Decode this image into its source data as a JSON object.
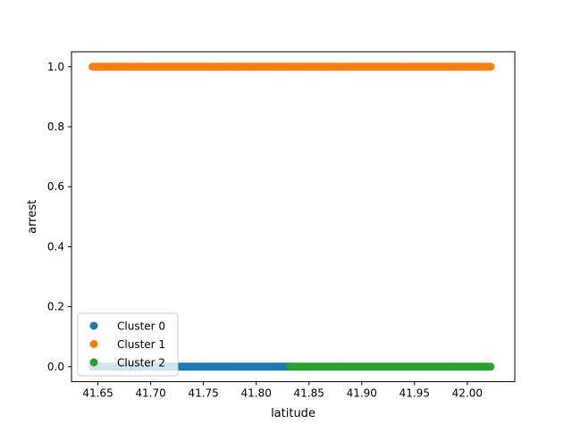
{
  "chart_data": {
    "type": "scatter",
    "title": "",
    "xlabel": "latitude",
    "ylabel": "arrest",
    "xlim": [
      41.625,
      42.045
    ],
    "ylim": [
      -0.05,
      1.05
    ],
    "xticks": [
      41.65,
      41.7,
      41.75,
      41.8,
      41.85,
      41.9,
      41.95,
      42.0
    ],
    "xtick_labels": [
      "41.65",
      "41.70",
      "41.75",
      "41.80",
      "41.85",
      "41.90",
      "41.95",
      "42.00"
    ],
    "yticks": [
      0.0,
      0.2,
      0.4,
      0.6,
      0.8,
      1.0
    ],
    "ytick_labels": [
      "0.0",
      "0.2",
      "0.4",
      "0.6",
      "0.8",
      "1.0"
    ],
    "grid": false,
    "legend": {
      "position": "lower-left",
      "entries": [
        "Cluster 0",
        "Cluster 1",
        "Cluster 2"
      ]
    },
    "series": [
      {
        "name": "Cluster 0",
        "color": "#1f77b4",
        "y": 0,
        "x_range": [
          41.645,
          41.832
        ]
      },
      {
        "name": "Cluster 1",
        "color": "#ff7f0e",
        "y": 1,
        "x_range": [
          41.645,
          42.022
        ]
      },
      {
        "name": "Cluster 2",
        "color": "#2ca02c",
        "y": 0,
        "x_range": [
          41.832,
          42.022
        ]
      }
    ]
  }
}
